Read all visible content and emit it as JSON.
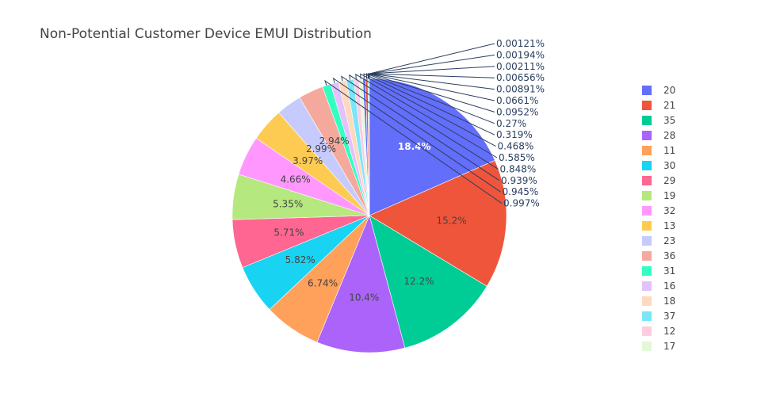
{
  "chart_data": {
    "type": "pie",
    "title": "Non-Potential Customer Device EMUI Distribution",
    "slices": [
      {
        "label": "20",
        "percent": 18.4,
        "text": "18.4%",
        "color": "#636efa"
      },
      {
        "label": "21",
        "percent": 15.2,
        "text": "15.2%",
        "color": "#ef553b"
      },
      {
        "label": "35",
        "percent": 12.2,
        "text": "12.2%",
        "color": "#00cc96"
      },
      {
        "label": "28",
        "percent": 10.4,
        "text": "10.4%",
        "color": "#ab63fa"
      },
      {
        "label": "11",
        "percent": 6.74,
        "text": "6.74%",
        "color": "#ffa15a"
      },
      {
        "label": "30",
        "percent": 5.82,
        "text": "5.82%",
        "color": "#19d3f3"
      },
      {
        "label": "29",
        "percent": 5.71,
        "text": "5.71%",
        "color": "#ff6692"
      },
      {
        "label": "19",
        "percent": 5.35,
        "text": "5.35%",
        "color": "#b6e880"
      },
      {
        "label": "32",
        "percent": 4.66,
        "text": "4.66%",
        "color": "#ff97ff"
      },
      {
        "label": "13",
        "percent": 3.97,
        "text": "3.97%",
        "color": "#fecb52"
      },
      {
        "label": "23",
        "percent": 2.99,
        "text": "2.99%",
        "color": "#c6cafd"
      },
      {
        "label": "36",
        "percent": 2.94,
        "text": "2.94%",
        "color": "#f5a99d"
      },
      {
        "label": "31",
        "percent": 0.997,
        "text": "0.997%",
        "color": "#33ffc0"
      },
      {
        "label": "16",
        "percent": 0.945,
        "text": "0.945%",
        "color": "#e2c1fd"
      },
      {
        "label": "18",
        "percent": 0.939,
        "text": "0.939%",
        "color": "#ffd9bd"
      },
      {
        "label": "37",
        "percent": 0.848,
        "text": "0.848%",
        "color": "#7ae6fa"
      },
      {
        "label": "12",
        "percent": 0.585,
        "text": "0.585%",
        "color": "#ffcce0"
      },
      {
        "label": "17",
        "percent": 0.468,
        "text": "0.468%",
        "color": "#e5f7d9"
      },
      {
        "label": "",
        "percent": 0.319,
        "text": "0.319%",
        "color": "#636efa"
      },
      {
        "label": "",
        "percent": 0.27,
        "text": "0.27%",
        "color": "#ef553b"
      },
      {
        "label": "",
        "percent": 0.0952,
        "text": "0.0952%",
        "color": "#00cc96"
      },
      {
        "label": "",
        "percent": 0.0661,
        "text": "0.0661%",
        "color": "#ab63fa"
      },
      {
        "label": "",
        "percent": 0.00891,
        "text": "0.00891%",
        "color": "#ffa15a"
      },
      {
        "label": "",
        "percent": 0.00656,
        "text": "0.00656%",
        "color": "#19d3f3"
      },
      {
        "label": "",
        "percent": 0.00211,
        "text": "0.00211%",
        "color": "#ff6692"
      },
      {
        "label": "",
        "percent": 0.00194,
        "text": "0.00194%",
        "color": "#b6e880"
      },
      {
        "label": "",
        "percent": 0.00121,
        "text": "0.00121%",
        "color": "#ff97ff"
      }
    ],
    "legend": {
      "placement": "right",
      "entries": [
        "20",
        "21",
        "35",
        "28",
        "11",
        "30",
        "29",
        "19",
        "32",
        "13",
        "23",
        "36",
        "31",
        "16",
        "18",
        "37",
        "12",
        "17"
      ]
    },
    "sort": "descending",
    "direction": "clockwise",
    "start": "top"
  }
}
